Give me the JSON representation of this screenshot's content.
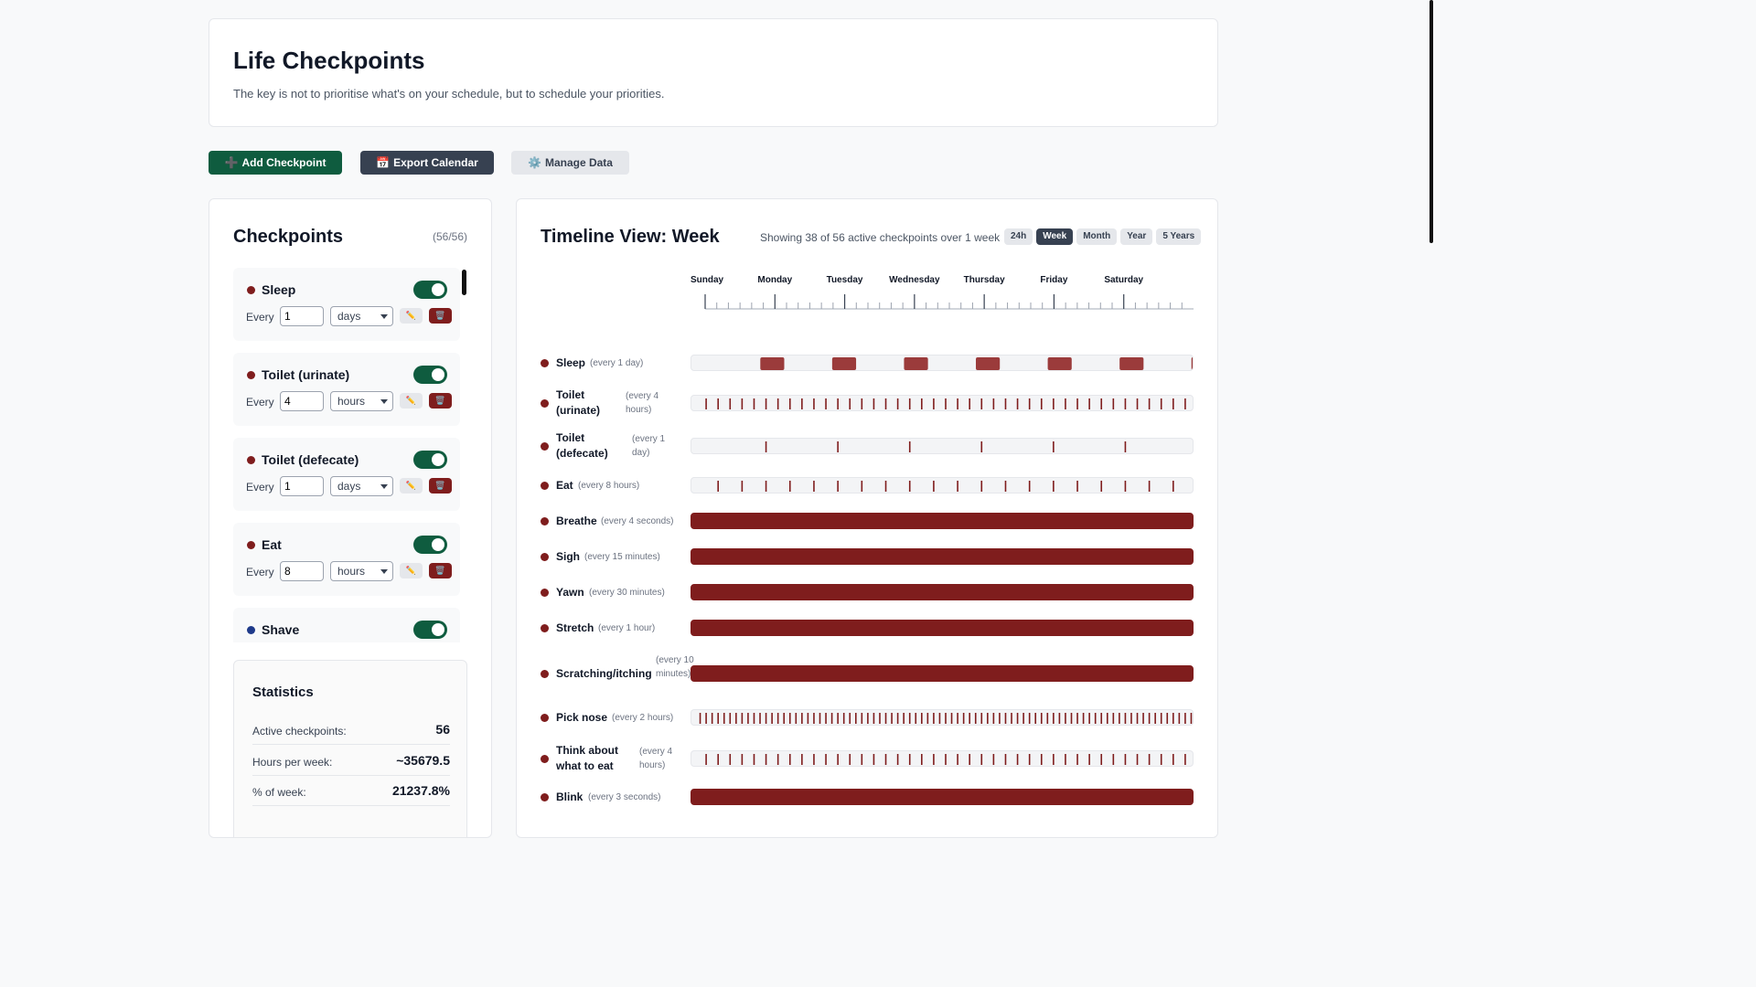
{
  "header": {
    "title": "Life Checkpoints",
    "subtitle": "The key is not to prioritise what's on your schedule, but to schedule your priorities."
  },
  "toolbar": {
    "add_label": "Add Checkpoint",
    "export_label": "Export Calendar",
    "manage_label": "Manage Data",
    "add_icon": "➕",
    "export_icon": "📅",
    "manage_icon": "⚙️"
  },
  "checkpoints": {
    "title": "Checkpoints",
    "count": "(56/56)",
    "every_label": "Every",
    "items": [
      {
        "name": "Sleep",
        "color": "#7f1d1d",
        "value": "1",
        "unit": "days"
      },
      {
        "name": "Toilet (urinate)",
        "color": "#7f1d1d",
        "value": "4",
        "unit": "hours"
      },
      {
        "name": "Toilet (defecate)",
        "color": "#7f1d1d",
        "value": "1",
        "unit": "days"
      },
      {
        "name": "Eat",
        "color": "#7f1d1d",
        "value": "8",
        "unit": "hours"
      },
      {
        "name": "Shave",
        "color": "#1e3a8a",
        "value": "",
        "unit": ""
      }
    ]
  },
  "statistics": {
    "title": "Statistics",
    "rows": [
      {
        "label": "Active checkpoints:",
        "value": "56"
      },
      {
        "label": "Hours per week:",
        "value": "~35679.5"
      },
      {
        "label": "% of week:",
        "value": "21237.8%"
      }
    ]
  },
  "timeline": {
    "title": "Timeline View: Week",
    "showing": "Showing 38 of 56 active checkpoints over 1 week",
    "ranges": [
      "24h",
      "Week",
      "Month",
      "Year",
      "5 Years"
    ],
    "active_range": "Week",
    "days": [
      "Sunday",
      "Monday",
      "Tuesday",
      "Wednesday",
      "Thursday",
      "Friday",
      "Saturday"
    ],
    "rows": [
      {
        "name": "Sleep",
        "freq": "(every 1 day)",
        "kind": "blocks",
        "period_hours": 24,
        "duration_hours": 8,
        "offset_hours": 23
      },
      {
        "name": "Toilet (urinate)",
        "freq": "(every 4 hours)",
        "kind": "ticks",
        "period_hours": 4
      },
      {
        "name": "Toilet (defecate)",
        "freq": "(every 1 day)",
        "kind": "ticks",
        "period_hours": 24
      },
      {
        "name": "Eat",
        "freq": "(every 8 hours)",
        "kind": "ticks",
        "period_hours": 8
      },
      {
        "name": "Breathe",
        "freq": "(every 4 seconds)",
        "kind": "full"
      },
      {
        "name": "Sigh",
        "freq": "(every 15 minutes)",
        "kind": "full"
      },
      {
        "name": "Yawn",
        "freq": "(every 30 minutes)",
        "kind": "full"
      },
      {
        "name": "Stretch",
        "freq": "(every 1 hour)",
        "kind": "full"
      },
      {
        "name": "Scratching/itching",
        "freq": "(every 10 minutes)",
        "kind": "full"
      },
      {
        "name": "Pick nose",
        "freq": "(every 2 hours)",
        "kind": "ticks",
        "period_hours": 2
      },
      {
        "name": "Think about what to eat",
        "freq": "(every 4 hours)",
        "kind": "ticks",
        "period_hours": 4
      },
      {
        "name": "Blink",
        "freq": "(every 3 seconds)",
        "kind": "full"
      }
    ]
  },
  "colors": {
    "accent_green": "#0f5c3f",
    "bar_red": "#7f1d1d",
    "sleep_block": "#9b3b3b"
  }
}
